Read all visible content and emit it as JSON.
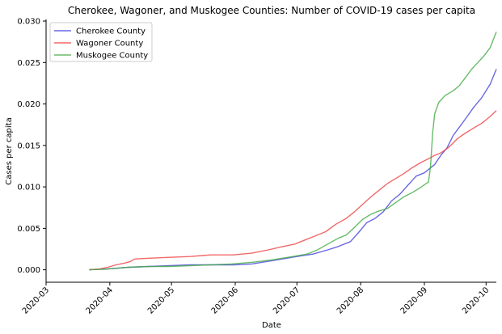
{
  "chart_data": {
    "type": "line",
    "title": "Cherokee, Wagoner, and Muskogee Counties: Number of COVID-19 cases per capita",
    "xlabel": "Date",
    "ylabel": "Cases per capita",
    "x_ticks": [
      "2020-03",
      "2020-04",
      "2020-05",
      "2020-06",
      "2020-07",
      "2020-08",
      "2020-09",
      "2020-10"
    ],
    "y_ticks": [
      "0.000",
      "0.005",
      "0.010",
      "0.015",
      "0.020",
      "0.025",
      "0.030"
    ],
    "ylim": [
      -0.0015,
      0.0302
    ],
    "xlim_days": [
      0,
      219
    ],
    "legend": "top-left",
    "series": [
      {
        "name": "Cherokee County",
        "color": "#4444dd",
        "points": [
          [
            21,
            0.0
          ],
          [
            30,
            0.0001
          ],
          [
            40,
            0.0003
          ],
          [
            50,
            0.0004
          ],
          [
            60,
            0.0005
          ],
          [
            70,
            0.0006
          ],
          [
            80,
            0.0006
          ],
          [
            91,
            0.0006
          ],
          [
            100,
            0.0007
          ],
          [
            110,
            0.0011
          ],
          [
            117,
            0.0014
          ],
          [
            122,
            0.0016
          ],
          [
            130,
            0.0019
          ],
          [
            137,
            0.0024
          ],
          [
            142,
            0.0028
          ],
          [
            148,
            0.0034
          ],
          [
            152,
            0.0045
          ],
          [
            156,
            0.0057
          ],
          [
            160,
            0.0062
          ],
          [
            164,
            0.007
          ],
          [
            168,
            0.0083
          ],
          [
            172,
            0.0091
          ],
          [
            176,
            0.0102
          ],
          [
            180,
            0.0113
          ],
          [
            184,
            0.0117
          ],
          [
            186,
            0.0121
          ],
          [
            189,
            0.0127
          ],
          [
            192,
            0.0138
          ],
          [
            195,
            0.0147
          ],
          [
            198,
            0.0162
          ],
          [
            201,
            0.0172
          ],
          [
            204,
            0.0182
          ],
          [
            208,
            0.0196
          ],
          [
            212,
            0.0208
          ],
          [
            216,
            0.0224
          ],
          [
            219,
            0.0242
          ]
        ]
      },
      {
        "name": "Wagoner County",
        "color": "#ee4444",
        "points": [
          [
            21,
            0.0
          ],
          [
            26,
            0.0001
          ],
          [
            30,
            0.0003
          ],
          [
            34,
            0.0006
          ],
          [
            38,
            0.0008
          ],
          [
            41,
            0.001
          ],
          [
            43,
            0.0013
          ],
          [
            50,
            0.0014
          ],
          [
            60,
            0.0015
          ],
          [
            70,
            0.0016
          ],
          [
            80,
            0.0018
          ],
          [
            91,
            0.0018
          ],
          [
            100,
            0.002
          ],
          [
            108,
            0.0024
          ],
          [
            115,
            0.0028
          ],
          [
            121,
            0.0031
          ],
          [
            126,
            0.0036
          ],
          [
            131,
            0.0041
          ],
          [
            136,
            0.0046
          ],
          [
            141,
            0.0055
          ],
          [
            146,
            0.0062
          ],
          [
            150,
            0.007
          ],
          [
            154,
            0.0079
          ],
          [
            158,
            0.0088
          ],
          [
            162,
            0.0096
          ],
          [
            166,
            0.0104
          ],
          [
            170,
            0.011
          ],
          [
            174,
            0.0116
          ],
          [
            178,
            0.0123
          ],
          [
            182,
            0.0129
          ],
          [
            186,
            0.0134
          ],
          [
            189,
            0.0138
          ],
          [
            192,
            0.0141
          ],
          [
            196,
            0.0148
          ],
          [
            200,
            0.0158
          ],
          [
            204,
            0.0165
          ],
          [
            208,
            0.0171
          ],
          [
            212,
            0.0177
          ],
          [
            216,
            0.0185
          ],
          [
            219,
            0.0192
          ]
        ]
      },
      {
        "name": "Muskogee County",
        "color": "#44aa44",
        "points": [
          [
            21,
            0.0
          ],
          [
            30,
            0.0001
          ],
          [
            40,
            0.0003
          ],
          [
            50,
            0.0004
          ],
          [
            60,
            0.0004
          ],
          [
            70,
            0.0005
          ],
          [
            80,
            0.0006
          ],
          [
            90,
            0.0007
          ],
          [
            100,
            0.0009
          ],
          [
            110,
            0.0012
          ],
          [
            120,
            0.0016
          ],
          [
            127,
            0.0019
          ],
          [
            132,
            0.0024
          ],
          [
            137,
            0.0031
          ],
          [
            142,
            0.0038
          ],
          [
            146,
            0.0042
          ],
          [
            150,
            0.0051
          ],
          [
            154,
            0.0061
          ],
          [
            158,
            0.0067
          ],
          [
            162,
            0.0071
          ],
          [
            166,
            0.0074
          ],
          [
            170,
            0.0081
          ],
          [
            174,
            0.0088
          ],
          [
            178,
            0.0093
          ],
          [
            182,
            0.0099
          ],
          [
            186,
            0.0106
          ],
          [
            187,
            0.0125
          ],
          [
            188,
            0.0165
          ],
          [
            189,
            0.0188
          ],
          [
            191,
            0.0202
          ],
          [
            194,
            0.021
          ],
          [
            198,
            0.0216
          ],
          [
            201,
            0.0222
          ],
          [
            204,
            0.0232
          ],
          [
            207,
            0.0242
          ],
          [
            210,
            0.025
          ],
          [
            213,
            0.0258
          ],
          [
            216,
            0.0268
          ],
          [
            219,
            0.0287
          ]
        ]
      }
    ]
  }
}
